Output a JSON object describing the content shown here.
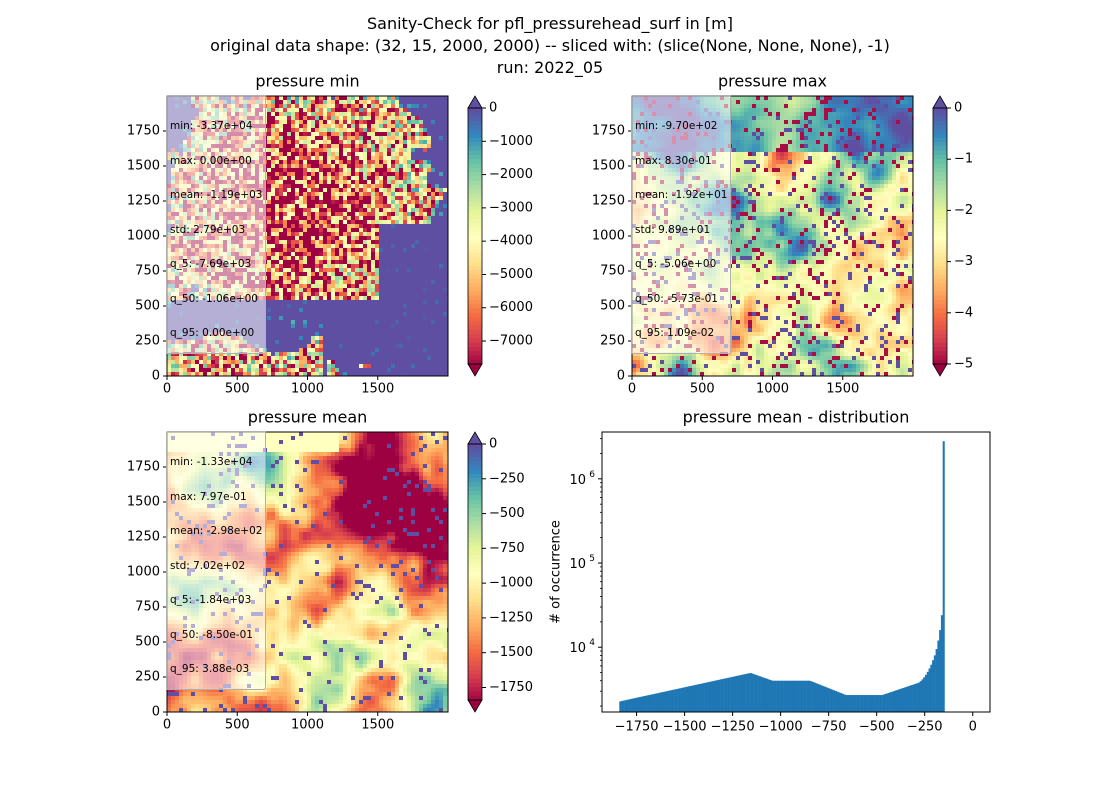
{
  "title": {
    "line1": "Sanity-Check for pfl_pressurehead_surf in [m]",
    "line2": "original data shape: (32, 15, 2000, 2000) -- sliced with: (slice(None, None, None), -1)",
    "line3": "run: 2022_05"
  },
  "panels": [
    {
      "title": "pressure min",
      "stats": [
        "min: -3.37e+04",
        "max: 0.00e+00",
        "mean: -1.19e+03",
        "std: 2.79e+03",
        "q_5: -7.69e+03",
        "q_50: -1.06e+00",
        "q_95: 0.00e+00"
      ],
      "colorbar": {
        "colormap": "Spectral",
        "range": [
          -7690,
          0
        ],
        "extend": "both",
        "ticks": [
          "0",
          "−1000",
          "−2000",
          "−3000",
          "−4000",
          "−5000",
          "−6000",
          "−7000"
        ],
        "tick_values": [
          0,
          -1000,
          -2000,
          -3000,
          -4000,
          -5000,
          -6000,
          -7000
        ]
      },
      "x_ticks": [
        "0",
        "500",
        "1000",
        "1500"
      ],
      "y_ticks": [
        "0",
        "250",
        "500",
        "750",
        "1000",
        "1250",
        "1500",
        "1750"
      ]
    },
    {
      "title": "pressure max",
      "stats": [
        "min: -9.70e+02",
        "max: 8.30e-01",
        "mean: -1.92e+01",
        "std: 9.89e+01",
        "q_5: -5.06e+00",
        "q_50: -5.73e-01",
        "q_95: 1.09e-02"
      ],
      "colorbar": {
        "colormap": "Spectral",
        "range": [
          -5,
          0
        ],
        "extend": "both",
        "ticks": [
          "0",
          "−1",
          "−2",
          "−3",
          "−4",
          "−5"
        ],
        "tick_values": [
          0,
          -1,
          -2,
          -3,
          -4,
          -5
        ]
      },
      "x_ticks": [
        "0",
        "500",
        "1000",
        "1500"
      ],
      "y_ticks": [
        "0",
        "250",
        "500",
        "750",
        "1000",
        "1250",
        "1500",
        "1750"
      ]
    },
    {
      "title": "pressure mean",
      "stats": [
        "min: -1.33e+04",
        "max: 7.97e-01",
        "mean: -2.98e+02",
        "std: 7.02e+02",
        "q_5: -1.84e+03",
        "q_50: -8.50e-01",
        "q_95: 3.88e-03"
      ],
      "colorbar": {
        "colormap": "Spectral",
        "range": [
          -1840,
          0
        ],
        "extend": "both",
        "ticks": [
          "0",
          "−250",
          "−500",
          "−750",
          "−1000",
          "−1250",
          "−1500",
          "−1750"
        ],
        "tick_values": [
          0,
          -250,
          -500,
          -750,
          -1000,
          -1250,
          -1500,
          -1750
        ]
      },
      "x_ticks": [
        "0",
        "500",
        "1000",
        "1500"
      ],
      "y_ticks": [
        "0",
        "250",
        "500",
        "750",
        "1000",
        "1250",
        "1500",
        "1750"
      ]
    }
  ],
  "chart_data": [
    {
      "type": "heatmap",
      "title": "pressure min",
      "xlim": [
        0,
        2000
      ],
      "ylim": [
        0,
        2000
      ],
      "colormap": "Spectral",
      "vmin": -7690,
      "vmax": 0,
      "x_tick_values": [
        0,
        500,
        1000,
        1500
      ],
      "y_tick_values": [
        0,
        250,
        500,
        750,
        1000,
        1250,
        1500,
        1750
      ]
    },
    {
      "type": "heatmap",
      "title": "pressure max",
      "xlim": [
        0,
        2000
      ],
      "ylim": [
        0,
        2000
      ],
      "colormap": "Spectral",
      "vmin": -5,
      "vmax": 0,
      "x_tick_values": [
        0,
        500,
        1000,
        1500
      ],
      "y_tick_values": [
        0,
        250,
        500,
        750,
        1000,
        1250,
        1500,
        1750
      ]
    },
    {
      "type": "heatmap",
      "title": "pressure mean",
      "xlim": [
        0,
        2000
      ],
      "ylim": [
        0,
        2000
      ],
      "colormap": "Spectral",
      "vmin": -1840,
      "vmax": 0,
      "x_tick_values": [
        0,
        500,
        1000,
        1500
      ],
      "y_tick_values": [
        0,
        250,
        500,
        750,
        1000,
        1250,
        1500,
        1750
      ]
    },
    {
      "type": "bar",
      "title": "pressure mean - distribution",
      "xlabel": "",
      "ylabel": "# of occurrence",
      "yscale": "log",
      "xlim": [
        -1930,
        90
      ],
      "ylim": [
        1700,
        3600000
      ],
      "bar_color": "#1f77b4",
      "x_ticks": [
        "−1750",
        "−1500",
        "−1250",
        "−1000",
        "−750",
        "−500",
        "−250",
        "0"
      ],
      "x_tick_values": [
        -1750,
        -1500,
        -1250,
        -1000,
        -750,
        -500,
        -250,
        0
      ],
      "y_ticks": [
        "10^4",
        "10^5",
        "10^6"
      ],
      "y_tick_values": [
        10000,
        100000,
        1000000
      ],
      "bin_width": 9.2,
      "x_start": -1840,
      "values": [
        2275,
        2300,
        2325,
        2350,
        2375,
        2400,
        2426,
        2452,
        2478,
        2504,
        2531,
        2557,
        2584,
        2612,
        2639,
        2667,
        2695,
        2724,
        2753,
        2782,
        2811,
        2841,
        2871,
        2901,
        2932,
        2963,
        2994,
        3026,
        3058,
        3090,
        3123,
        3156,
        3189,
        3223,
        3257,
        3292,
        3326,
        3362,
        3397,
        3433,
        3470,
        3506,
        3544,
        3581,
        3619,
        3657,
        3696,
        3735,
        3775,
        3815,
        3855,
        3896,
        3937,
        3979,
        4021,
        4064,
        4107,
        4150,
        4194,
        4238,
        4283,
        4328,
        4374,
        4420,
        4467,
        4515,
        4562,
        4611,
        4659,
        4709,
        4759,
        4809,
        4860,
        4911,
        4927,
        4843,
        4761,
        4679,
        4600,
        4521,
        4444,
        4369,
        4294,
        4221,
        4150,
        4079,
        4010,
        4001,
        4001,
        4001,
        4001,
        4001,
        4001,
        4001,
        4001,
        4001,
        4001,
        4001,
        4001,
        4001,
        4001,
        4001,
        4001,
        4001,
        4001,
        4001,
        4001,
        4001,
        3950,
        3875,
        3801,
        3728,
        3657,
        3588,
        3519,
        3452,
        3387,
        3322,
        3259,
        3197,
        3136,
        3077,
        3018,
        2961,
        2904,
        2849,
        2795,
        2742,
        2703,
        2703,
        2703,
        2703,
        2703,
        2703,
        2703,
        2703,
        2703,
        2703,
        2703,
        2703,
        2703,
        2703,
        2703,
        2703,
        2703,
        2703,
        2703,
        2703,
        2703,
        2735,
        2780,
        2826,
        2873,
        2920,
        2968,
        3017,
        3067,
        3117,
        3168,
        3221,
        3273,
        3327,
        3382,
        3438,
        3494,
        3552,
        3610,
        3670,
        3730,
        3800,
        3950,
        4150,
        4400,
        4700,
        5100,
        5600,
        6200,
        7000,
        8000,
        9500,
        12000,
        16000,
        24000,
        2800000
      ]
    }
  ]
}
